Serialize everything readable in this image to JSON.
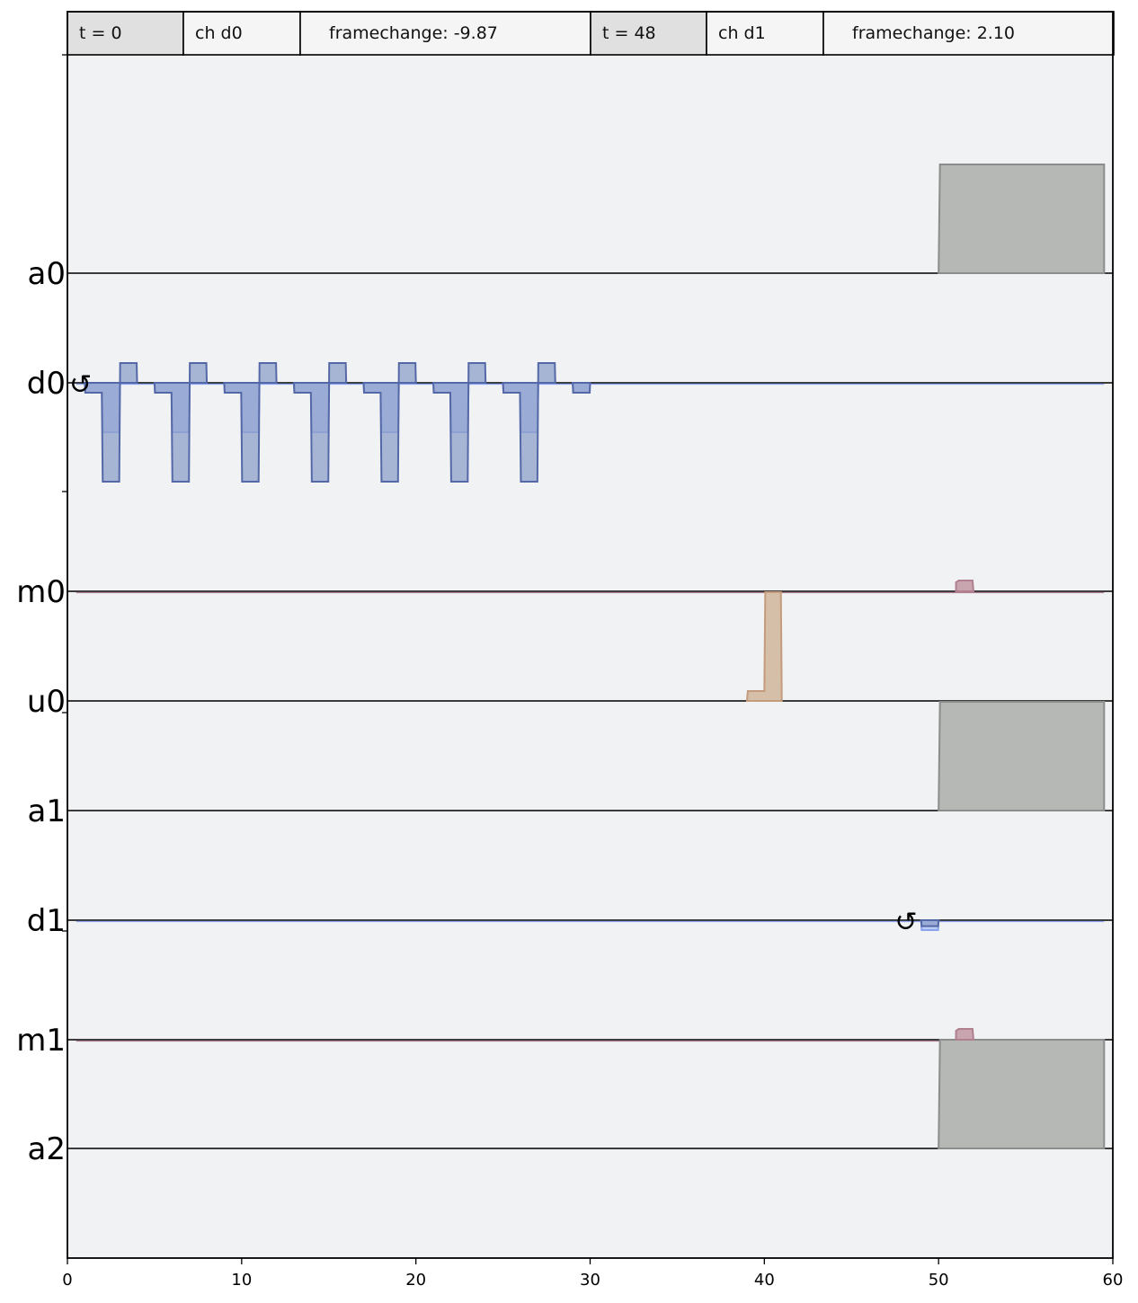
{
  "frame_change_table": [
    {
      "time": "t = 0",
      "channel": "ch d0",
      "change": "framechange: -9.87"
    },
    {
      "time": "t = 48",
      "channel": "ch d1",
      "change": "framechange: 2.10"
    }
  ],
  "colors": {
    "background": "#f1f2f4",
    "header_time": "#e0e0e0",
    "header_cell": "#f5f5f5",
    "drive_real_fill": "#8ea0c9",
    "drive_real_stroke": "#5468a8",
    "drive_imag_fill": "#b8c9f5",
    "drive_imag_stroke": "#8aa3ee",
    "drive_overlap_fill": "#7d94de",
    "acquire_fill": "#b6b8b6",
    "acquire_stroke": "#8b8c8b",
    "measure_fill": "#c9a5b0",
    "measure_stroke": "#b08090",
    "control_fill": "#d6bfa8",
    "control_stroke": "#c49b7c"
  },
  "chart_data": {
    "type": "line",
    "xlim": [
      0,
      60
    ],
    "x_ticks": [
      "0",
      "10",
      "20",
      "30",
      "40",
      "50",
      "60"
    ],
    "channels": [
      "a0",
      "d0",
      "m0",
      "u0",
      "a1",
      "d1",
      "m1",
      "a2"
    ],
    "drive_pulses": [
      {
        "channel": "d0",
        "start": 1,
        "real": [
          -0.1,
          -1,
          0.2
        ],
        "imag": [
          -0.1,
          -0.5,
          0
        ]
      },
      {
        "channel": "d0",
        "start": 5,
        "real": [
          -0.1,
          -1,
          0.2
        ],
        "imag": [
          -0.1,
          -0.5,
          0
        ]
      },
      {
        "channel": "d0",
        "start": 9,
        "real": [
          -0.1,
          -1,
          0.2
        ],
        "imag": [
          -0.1,
          -0.5,
          0
        ]
      },
      {
        "channel": "d0",
        "start": 13,
        "real": [
          -0.1,
          -1,
          0.2
        ],
        "imag": [
          -0.1,
          -0.5,
          0
        ]
      },
      {
        "channel": "d0",
        "start": 17,
        "real": [
          -0.1,
          -1,
          0.2
        ],
        "imag": [
          -0.1,
          -0.5,
          0
        ]
      },
      {
        "channel": "d0",
        "start": 21,
        "real": [
          -0.1,
          -1,
          0.2
        ],
        "imag": [
          -0.1,
          -0.5,
          0
        ]
      },
      {
        "channel": "d0",
        "start": 25,
        "real": [
          -0.1,
          -1,
          0.2
        ],
        "imag": [
          -0.1,
          -0.5,
          0
        ]
      },
      {
        "channel": "d0",
        "start": 29,
        "real": [
          -0.1
        ],
        "imag": [
          -0.1
        ]
      },
      {
        "channel": "d1",
        "start": 49,
        "real": [
          -0.06
        ],
        "imag": [
          -0.1
        ]
      }
    ],
    "acquire": [
      {
        "channel": "a0",
        "start": 50,
        "stop": 59.5
      },
      {
        "channel": "a1",
        "start": 50,
        "stop": 59.5
      },
      {
        "channel": "a2",
        "start": 50,
        "stop": 59.5
      }
    ],
    "measure": [
      {
        "channel": "m0",
        "start": 51,
        "stop": 52
      },
      {
        "channel": "m1",
        "start": 51,
        "stop": 52
      }
    ],
    "control": [
      {
        "channel": "u0",
        "start": 39,
        "stop": 41,
        "values": [
          0.1,
          1
        ]
      }
    ],
    "frame_change_markers": [
      {
        "channel": "d0",
        "time": 0
      },
      {
        "channel": "d1",
        "time": 48
      }
    ]
  }
}
